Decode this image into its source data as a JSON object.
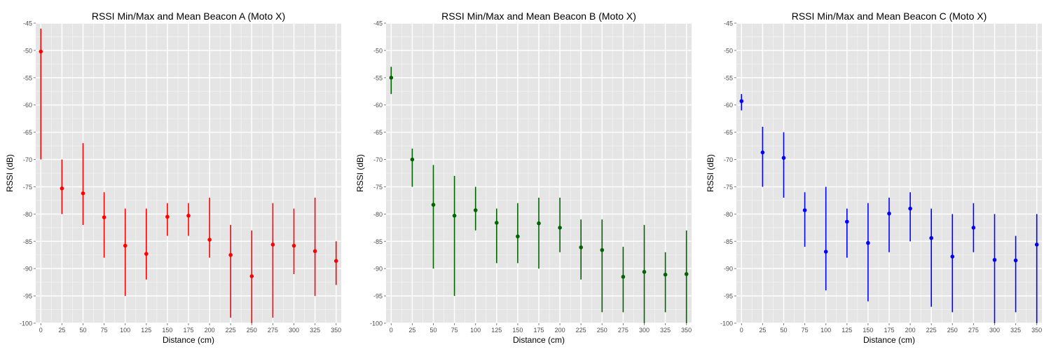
{
  "chart_data": [
    {
      "type": "scatter",
      "title": "RSSI Min/Max and Mean Beacon A (Moto X)",
      "xlabel": "Distance (cm)",
      "ylabel": "RSSI (dB)",
      "color": "#ff0000",
      "xlim": [
        0,
        350
      ],
      "ylim": [
        -100,
        -45
      ],
      "x_ticks": [
        0,
        25,
        50,
        75,
        100,
        125,
        150,
        175,
        200,
        225,
        250,
        275,
        300,
        325,
        350
      ],
      "y_ticks": [
        -100,
        -95,
        -90,
        -85,
        -80,
        -75,
        -70,
        -65,
        -60,
        -55,
        -50,
        -45
      ],
      "x_tick_labels": [
        "0",
        "25",
        "50",
        "75",
        "100",
        "125",
        "150",
        "175",
        "200",
        "225",
        "250",
        "275",
        "300",
        "325",
        "350"
      ],
      "y_tick_labels": [
        "-100",
        "-95",
        "-90",
        "-85",
        "-80",
        "-75",
        "-70",
        "-65",
        "-60",
        "-55",
        "-50",
        "-45"
      ],
      "grid": true,
      "x": [
        0,
        25,
        50,
        75,
        100,
        125,
        150,
        175,
        200,
        225,
        250,
        275,
        300,
        325,
        350
      ],
      "mean": [
        -50.2,
        -75.3,
        -76.2,
        -80.6,
        -85.8,
        -87.3,
        -80.5,
        -80.3,
        -84.7,
        -87.5,
        -91.4,
        -85.6,
        -85.8,
        -86.8,
        -88.6
      ],
      "min": [
        -70,
        -80,
        -82,
        -88,
        -95,
        -92,
        -84,
        -84,
        -88,
        -99,
        -100,
        -99,
        -91,
        -95,
        -93
      ],
      "max": [
        -46,
        -70,
        -67,
        -76,
        -79,
        -79,
        -78,
        -78,
        -77,
        -82,
        -83,
        -78,
        -79,
        -77,
        -85
      ]
    },
    {
      "type": "scatter",
      "title": "RSSI Min/Max and Mean Beacon B (Moto X)",
      "xlabel": "Distance (cm)",
      "ylabel": "RSSI (dB)",
      "color": "#006400",
      "xlim": [
        0,
        350
      ],
      "ylim": [
        -100,
        -45
      ],
      "x_ticks": [
        0,
        25,
        50,
        75,
        100,
        125,
        150,
        175,
        200,
        225,
        250,
        275,
        300,
        325,
        350
      ],
      "y_ticks": [
        -100,
        -95,
        -90,
        -85,
        -80,
        -75,
        -70,
        -65,
        -60,
        -55,
        -50,
        -45
      ],
      "x_tick_labels": [
        "0",
        "25",
        "50",
        "75",
        "100",
        "125",
        "150",
        "175",
        "200",
        "225",
        "250",
        "275",
        "300",
        "325",
        "350"
      ],
      "y_tick_labels": [
        "-100",
        "-95",
        "-90",
        "-85",
        "-80",
        "-75",
        "-70",
        "-65",
        "-60",
        "-55",
        "-50",
        "-45"
      ],
      "grid": true,
      "x": [
        0,
        25,
        50,
        75,
        100,
        125,
        150,
        175,
        200,
        225,
        250,
        275,
        300,
        325,
        350
      ],
      "mean": [
        -55,
        -70,
        -78.3,
        -80.3,
        -79.3,
        -81.6,
        -84.1,
        -81.7,
        -82.5,
        -86.1,
        -86.6,
        -91.5,
        -90.6,
        -91.1,
        -91
      ],
      "min": [
        -58,
        -75,
        -90,
        -95,
        -83,
        -89,
        -89,
        -90,
        -87,
        -92,
        -98,
        -98,
        -100,
        -98,
        -100
      ],
      "max": [
        -53,
        -68,
        -71,
        -73,
        -75,
        -79,
        -78,
        -77,
        -77,
        -81,
        -81,
        -86,
        -82,
        -87,
        -83
      ]
    },
    {
      "type": "scatter",
      "title": "RSSI Min/Max and Mean Beacon C (Moto X)",
      "xlabel": "Distance (cm)",
      "ylabel": "RSSI (dB)",
      "color": "#0000ff",
      "xlim": [
        0,
        350
      ],
      "ylim": [
        -100,
        -45
      ],
      "x_ticks": [
        0,
        25,
        50,
        75,
        100,
        125,
        150,
        175,
        200,
        225,
        250,
        275,
        300,
        325,
        350
      ],
      "y_ticks": [
        -100,
        -95,
        -90,
        -85,
        -80,
        -75,
        -70,
        -65,
        -60,
        -55,
        -50,
        -45
      ],
      "x_tick_labels": [
        "0",
        "25",
        "50",
        "75",
        "100",
        "125",
        "150",
        "175",
        "200",
        "225",
        "250",
        "275",
        "300",
        "325",
        "350"
      ],
      "y_tick_labels": [
        "-100",
        "-95",
        "-90",
        "-85",
        "-80",
        "-75",
        "-70",
        "-65",
        "-60",
        "-55",
        "-50",
        "-45"
      ],
      "grid": true,
      "x": [
        0,
        25,
        50,
        75,
        100,
        125,
        150,
        175,
        200,
        225,
        250,
        275,
        300,
        325,
        350
      ],
      "mean": [
        -59.3,
        -68.7,
        -69.7,
        -79.3,
        -86.9,
        -81.4,
        -85.3,
        -79.9,
        -79,
        -84.4,
        -87.8,
        -82.5,
        -88.4,
        -88.5,
        -85.6
      ],
      "min": [
        -61,
        -75,
        -77,
        -86,
        -94,
        -88,
        -96,
        -87,
        -85,
        -97,
        -98,
        -87,
        -100,
        -98,
        -100
      ],
      "max": [
        -58,
        -64,
        -65,
        -76,
        -75,
        -79,
        -78,
        -77,
        -76,
        -79,
        -80,
        -78,
        -80,
        -84,
        -80
      ]
    }
  ]
}
